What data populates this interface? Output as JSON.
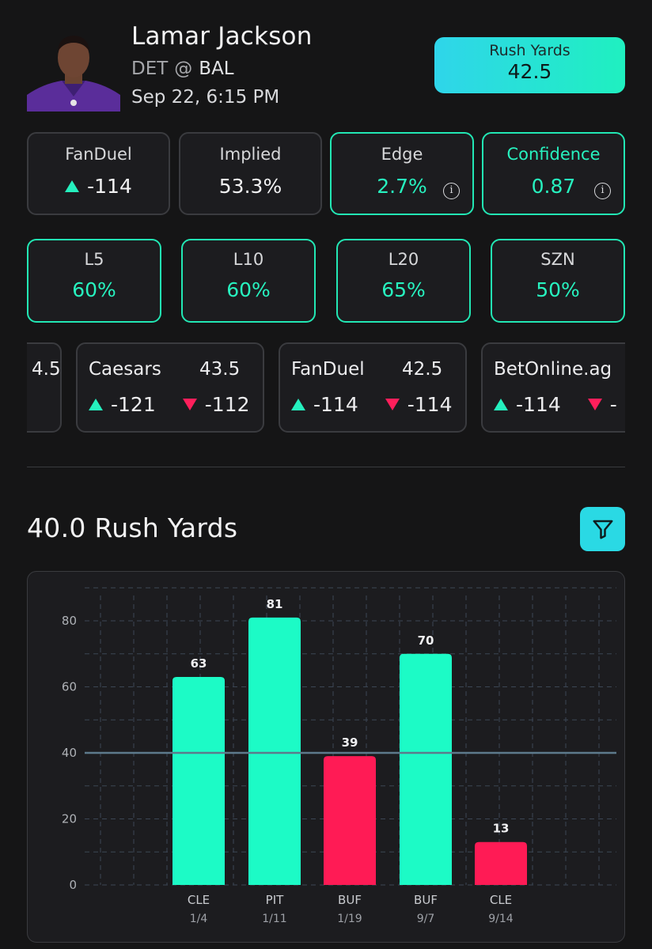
{
  "player": {
    "name": "Lamar Jackson",
    "away_team": "DET",
    "at_symbol": "@",
    "home_team": "BAL",
    "game_time": "Sep 22, 6:15 PM"
  },
  "prop": {
    "label": "Rush Yards",
    "line": "42.5"
  },
  "stats": [
    {
      "label": "FanDuel",
      "value": "-114",
      "direction": "up"
    },
    {
      "label": "Implied",
      "value": "53.3%"
    },
    {
      "label": "Edge",
      "value": "2.7%",
      "info": "i"
    },
    {
      "label": "Confidence",
      "value": "0.87",
      "info": "i"
    }
  ],
  "hit_rates": [
    {
      "label": "L5",
      "value": "60%"
    },
    {
      "label": "L10",
      "value": "60%"
    },
    {
      "label": "L20",
      "value": "65%"
    },
    {
      "label": "SZN",
      "value": "50%"
    }
  ],
  "books": [
    {
      "name": "",
      "line": "4.5",
      "over": "",
      "under": ""
    },
    {
      "name": "Caesars",
      "line": "43.5",
      "over": "-121",
      "under": "-112"
    },
    {
      "name": "FanDuel",
      "line": "42.5",
      "over": "-114",
      "under": "-114"
    },
    {
      "name": "BetOnline.ag",
      "line": "",
      "over": "-114",
      "under": "-"
    }
  ],
  "section_title": "40.0 Rush Yards",
  "colors": {
    "accent": "#27f2bf",
    "over": "#1cfbc6",
    "under": "#ff1b55",
    "threshold": "#5d7a8c"
  },
  "chart_data": {
    "type": "bar",
    "categories": [
      "CLE 1/4",
      "PIT 1/11",
      "BUF 1/19",
      "BUF 9/7",
      "CLE 9/14"
    ],
    "opponents": [
      "CLE",
      "PIT",
      "BUF",
      "BUF",
      "CLE"
    ],
    "dates": [
      "1/4",
      "1/11",
      "1/19",
      "9/7",
      "9/14"
    ],
    "values": [
      63,
      81,
      39,
      70,
      13
    ],
    "threshold": 40,
    "ylim": [
      0,
      80
    ],
    "yticks": [
      0,
      20,
      40,
      60,
      80
    ],
    "grid": true,
    "title": "",
    "xlabel": "",
    "ylabel": ""
  }
}
